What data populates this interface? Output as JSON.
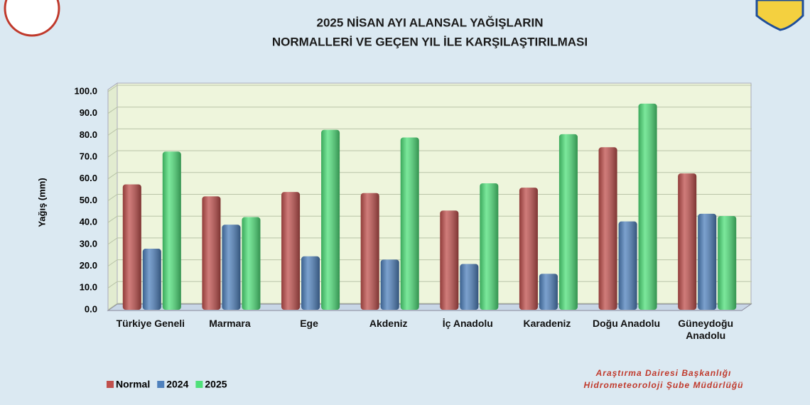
{
  "chart_data": {
    "type": "bar",
    "title": [
      "2025 NİSAN AYI ALANSAL YAĞIŞLARIN",
      "NORMALLERİ VE GEÇEN YIL İLE KARŞILAŞTIRILMASI"
    ],
    "y_label": "Yağış (mm)",
    "categories": [
      "Türkiye Geneli",
      "Marmara",
      "Ege",
      "Akdeniz",
      "İç Anadolu",
      "Karadeniz",
      "Doğu Anadolu",
      "Güneydoğu Anadolu"
    ],
    "series": [
      {
        "name": "Normal",
        "color": "#c0504d",
        "values": [
          57.5,
          52,
          54,
          53.5,
          45.5,
          56,
          74.5,
          62.5
        ]
      },
      {
        "name": "2024",
        "color": "#4f81bd",
        "values": [
          28,
          39,
          24.5,
          23,
          21,
          16.5,
          40.5,
          44
        ]
      },
      {
        "name": "2025",
        "color": "#4fe07a",
        "values": [
          72.5,
          42.5,
          82.5,
          79,
          58,
          80.5,
          94.5,
          43
        ]
      }
    ],
    "ylim": [
      0,
      100
    ],
    "yticks": [
      {
        "value": 0,
        "label": "0.0"
      },
      {
        "value": 10,
        "label": "10.0"
      },
      {
        "value": 20,
        "label": "20.0"
      },
      {
        "value": 30,
        "label": "30.0"
      },
      {
        "value": 40,
        "label": "40.0"
      },
      {
        "value": 50,
        "label": "50.0"
      },
      {
        "value": 60,
        "label": "60.0"
      },
      {
        "value": 70,
        "label": "70.0"
      },
      {
        "value": 80,
        "label": "80.0"
      },
      {
        "value": 90,
        "label": "90.0"
      },
      {
        "value": 100,
        "label": "100.0"
      }
    ],
    "grid": true,
    "legend": "bottom-left",
    "footer": [
      "Araştırma Dairesi Başkanlığı",
      "Hidrometeoroloji Şube Müdürlüğü"
    ]
  }
}
